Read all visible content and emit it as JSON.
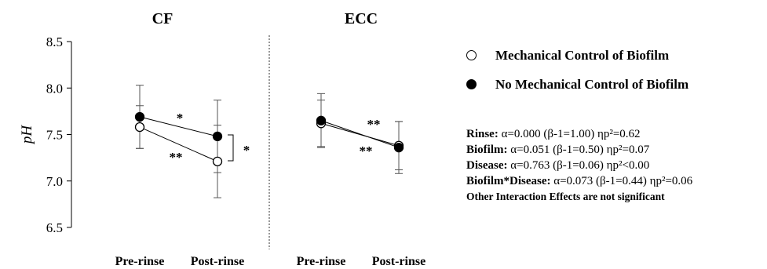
{
  "chart_data": {
    "type": "line",
    "ylabel": "pH",
    "ylim": [
      6.5,
      8.5
    ],
    "yticks": [
      "6.5",
      "7.0",
      "7.5",
      "8.0",
      "8.5"
    ],
    "panels": [
      {
        "title": "CF",
        "categories": [
          "Pre-rinse",
          "Post-rinse"
        ],
        "series": [
          {
            "name": "Mechanical Control of Biofilm",
            "marker": "open",
            "values": [
              7.58,
              7.21
            ],
            "error": [
              0.23,
              0.39
            ]
          },
          {
            "name": "No Mechanical Control of Biofilm",
            "marker": "filled",
            "values": [
              7.69,
              7.48
            ],
            "error": [
              0.34,
              0.39
            ]
          }
        ],
        "annotations": [
          "*",
          "**",
          "*"
        ]
      },
      {
        "title": "ECC",
        "categories": [
          "Pre-rinse",
          "Post-rinse"
        ],
        "series": [
          {
            "name": "Mechanical Control of Biofilm",
            "marker": "open",
            "values": [
              7.62,
              7.38
            ],
            "error": [
              0.25,
              0.26
            ]
          },
          {
            "name": "No Mechanical Control of Biofilm",
            "marker": "filled",
            "values": [
              7.65,
              7.36
            ],
            "error": [
              0.29,
              0.28
            ]
          }
        ],
        "annotations": [
          "**",
          "**"
        ]
      }
    ]
  },
  "legend": [
    {
      "label": "Mechanical Control of Biofilm",
      "marker": "open"
    },
    {
      "label": "No Mechanical Control of Biofilm",
      "marker": "filled"
    }
  ],
  "stats": [
    {
      "name": "Rinse:",
      "text": " α=0.000 (β-1=1.00) ηp²=0.62"
    },
    {
      "name": "Biofilm:",
      "text": " α=0.051 (β-1=0.50) ηp²=0.07"
    },
    {
      "name": "Disease:",
      "text": " α=0.763 (β-1=0.06) ηp²<0.00"
    },
    {
      "name": "Biofilm*Disease:",
      "text": "  α=0.073 (β-1=0.44) ηp²=0.06"
    }
  ],
  "stats_note": "Other Interaction Effects are not significant"
}
